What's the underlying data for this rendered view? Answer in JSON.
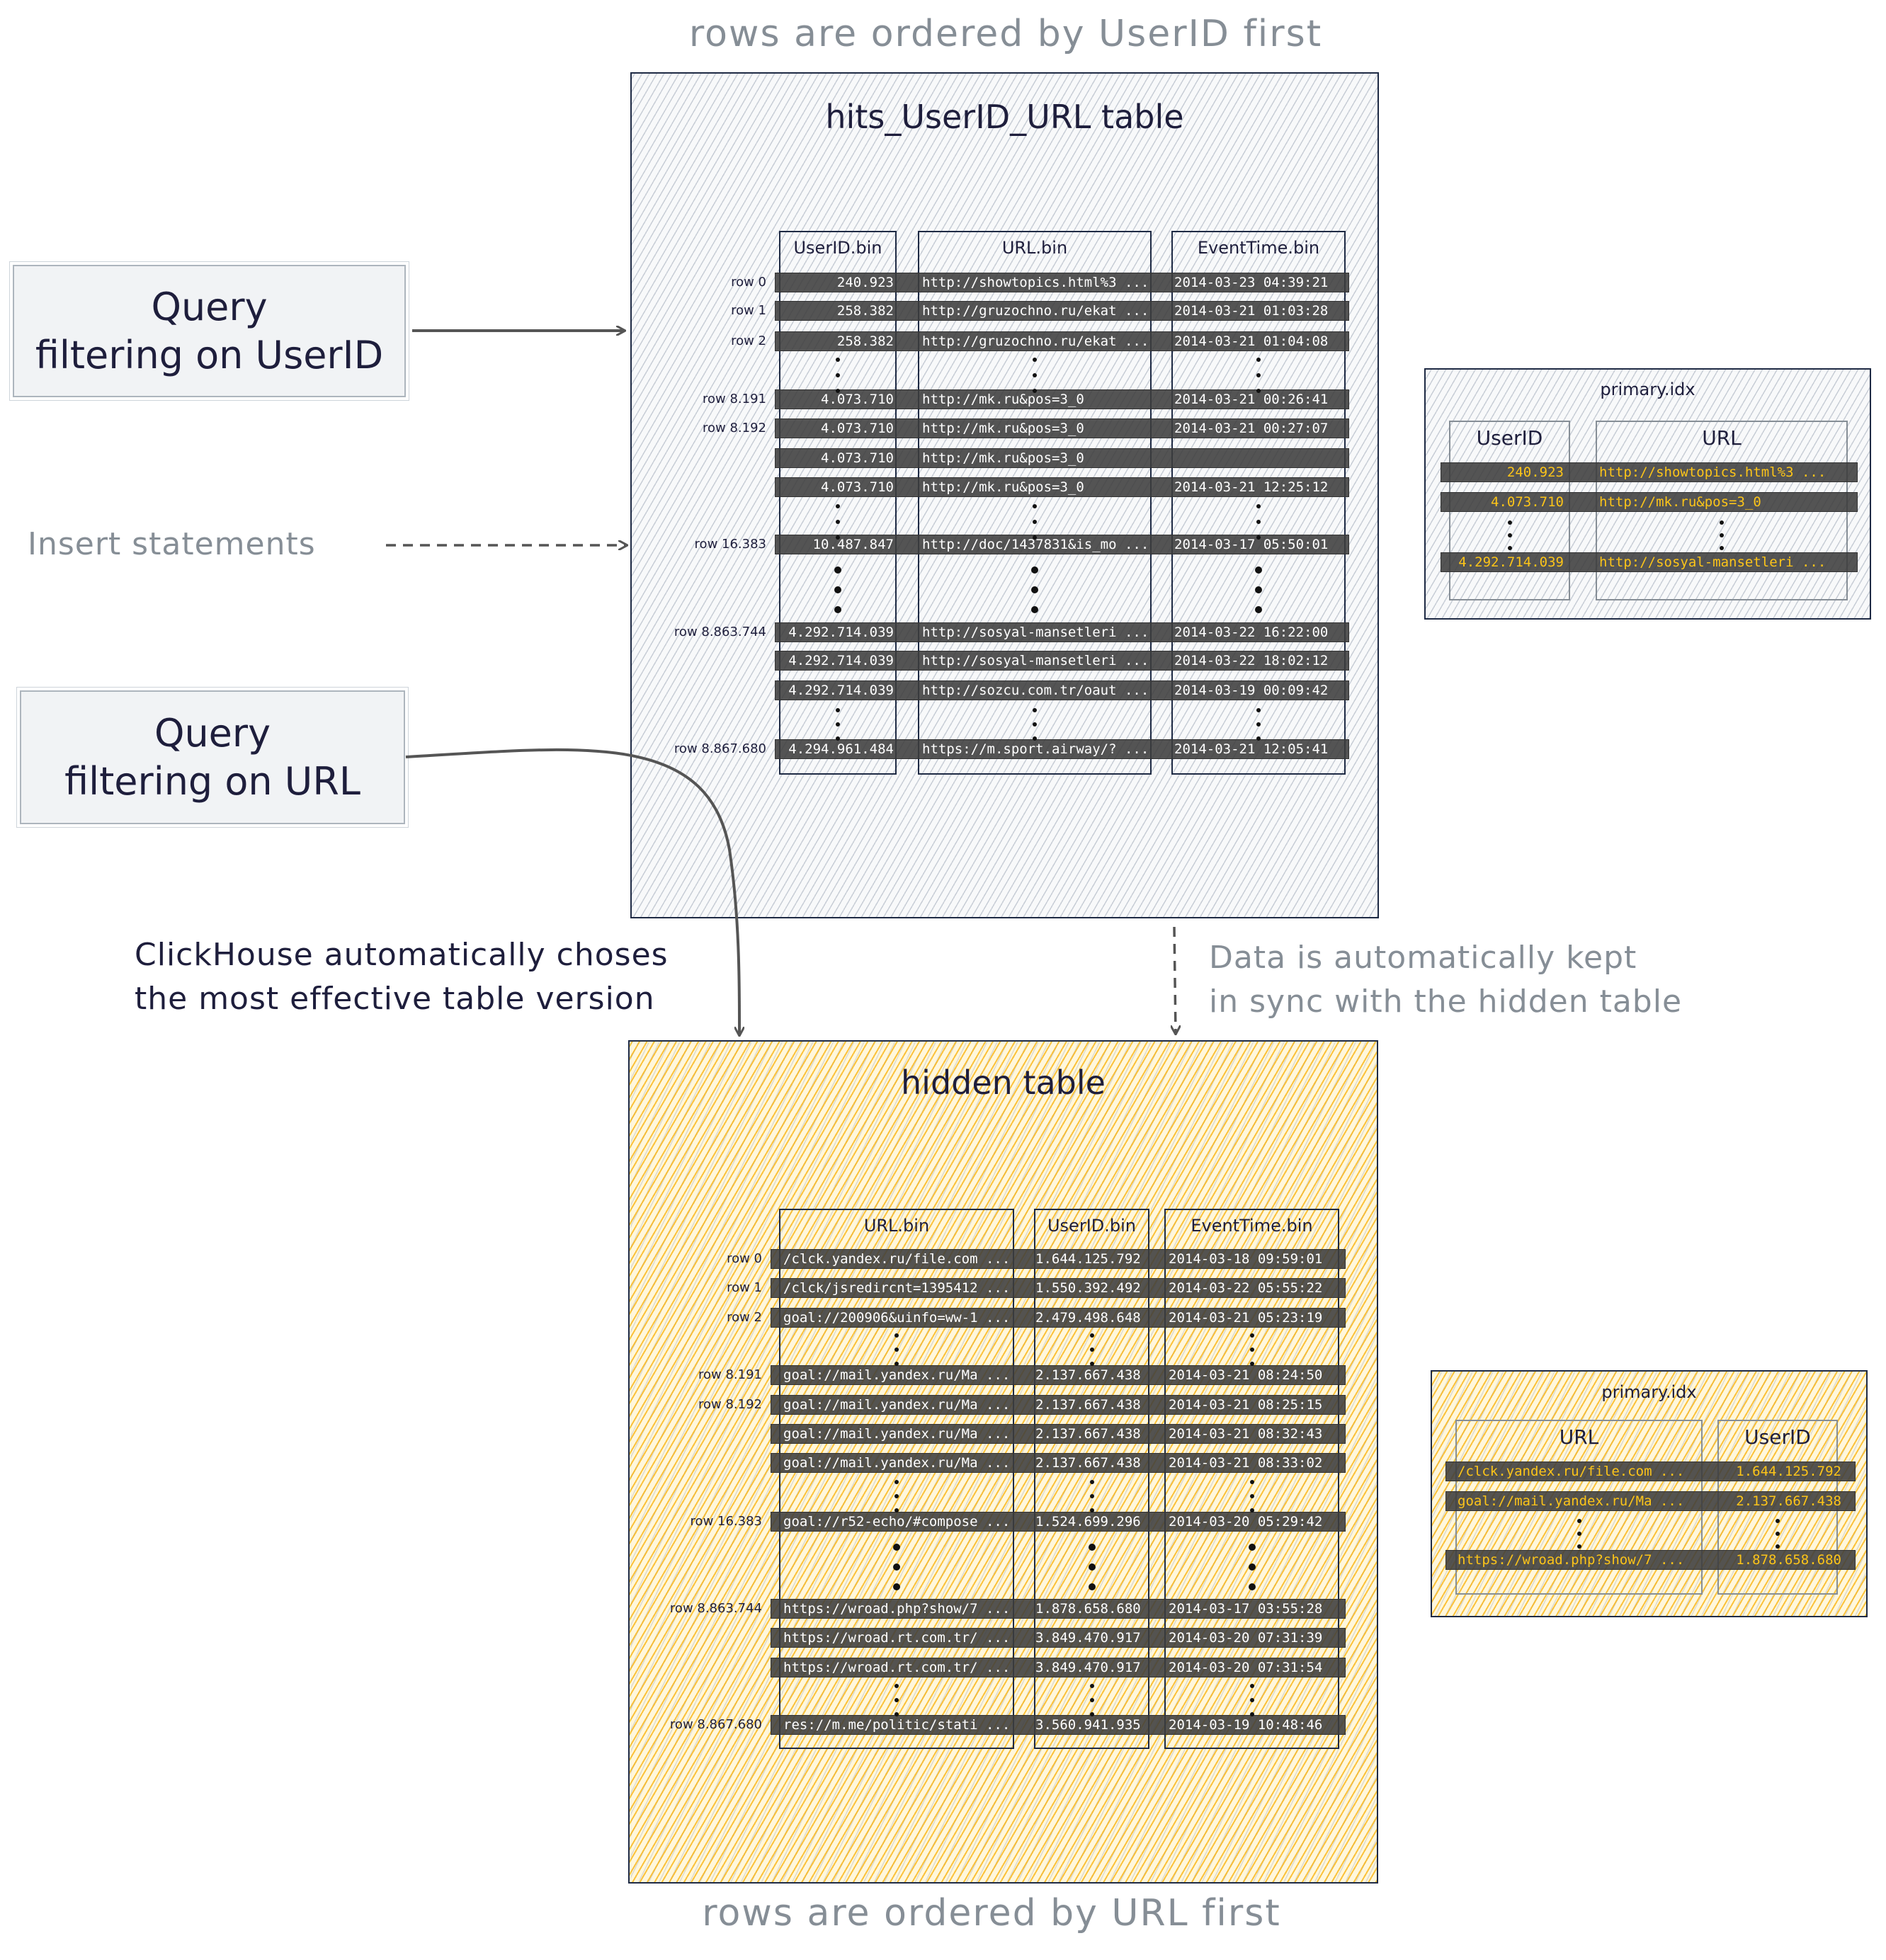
{
  "top_caption": "rows are ordered by UserID first",
  "bottom_caption": "rows are ordered by URL first",
  "main_table": {
    "title": "hits_UserID_URL table",
    "columns": [
      "UserID.bin",
      "URL.bin",
      "EventTime.bin"
    ],
    "rows": [
      {
        "label": "row 0",
        "values": [
          "240.923",
          "http://showtopics.html%3 ...",
          "2014-03-23 04:39:21"
        ]
      },
      {
        "label": "row 1",
        "values": [
          "258.382",
          "http://gruzochno.ru/ekat ...",
          "2014-03-21 01:03:28"
        ]
      },
      {
        "label": "row 2",
        "values": [
          "258.382",
          "http://gruzochno.ru/ekat ...",
          "2014-03-21 01:04:08"
        ]
      },
      {
        "label": "row 8.191",
        "values": [
          "4.073.710",
          "http://mk.ru&pos=3_0",
          "2014-03-21 00:26:41"
        ]
      },
      {
        "label": "row 8.192",
        "values": [
          "4.073.710",
          "http://mk.ru&pos=3_0",
          "2014-03-21 00:27:07"
        ]
      },
      {
        "label": "",
        "values": [
          "4.073.710",
          "http://mk.ru&pos=3_0",
          ""
        ]
      },
      {
        "label": "",
        "values": [
          "4.073.710",
          "http://mk.ru&pos=3_0",
          "2014-03-21 12:25:12"
        ]
      },
      {
        "label": "row 16.383",
        "values": [
          "10.487.847",
          "http://doc/1437831&is_mo ...",
          "2014-03-17 05:50:01"
        ]
      },
      {
        "label": "row 8.863.744",
        "values": [
          "4.292.714.039",
          "http://sosyal-mansetleri ...",
          "2014-03-22 16:22:00"
        ]
      },
      {
        "label": "",
        "values": [
          "4.292.714.039",
          "http://sosyal-mansetleri ...",
          "2014-03-22 18:02:12"
        ]
      },
      {
        "label": "",
        "values": [
          "4.292.714.039",
          "http://sozcu.com.tr/oaut ...",
          "2014-03-19 00:09:42"
        ]
      },
      {
        "label": "row 8.867.680",
        "values": [
          "4.294.961.484",
          "https://m.sport.airway/? ...",
          "2014-03-21 12:05:41"
        ]
      }
    ]
  },
  "hidden_table": {
    "title": "hidden table",
    "columns": [
      "URL.bin",
      "UserID.bin",
      "EventTime.bin"
    ],
    "rows": [
      {
        "label": "row 0",
        "values": [
          "/clck.yandex.ru/file.com ...",
          "1.644.125.792",
          "2014-03-18 09:59:01"
        ]
      },
      {
        "label": "row 1",
        "values": [
          "/clck/jsredircnt=1395412 ...",
          "1.550.392.492",
          "2014-03-22 05:55:22"
        ]
      },
      {
        "label": "row 2",
        "values": [
          "goal://200906&uinfo=ww-1 ...",
          "2.479.498.648",
          "2014-03-21 05:23:19"
        ]
      },
      {
        "label": "row 8.191",
        "values": [
          "goal://mail.yandex.ru/Ma ...",
          "2.137.667.438",
          "2014-03-21 08:24:50"
        ]
      },
      {
        "label": "row 8.192",
        "values": [
          "goal://mail.yandex.ru/Ma ...",
          "2.137.667.438",
          "2014-03-21 08:25:15"
        ]
      },
      {
        "label": "",
        "values": [
          "goal://mail.yandex.ru/Ma ...",
          "2.137.667.438",
          "2014-03-21 08:32:43"
        ]
      },
      {
        "label": "",
        "values": [
          "goal://mail.yandex.ru/Ma ...",
          "2.137.667.438",
          "2014-03-21 08:33:02"
        ]
      },
      {
        "label": "row 16.383",
        "values": [
          "goal://r52-echo/#compose ...",
          "1.524.699.296",
          "2014-03-20 05:29:42"
        ]
      },
      {
        "label": "row 8.863.744",
        "values": [
          "https://wroad.php?show/7 ...",
          "1.878.658.680",
          "2014-03-17 03:55:28"
        ]
      },
      {
        "label": "",
        "values": [
          "https://wroad.rt.com.tr/ ...",
          "3.849.470.917",
          "2014-03-20 07:31:39"
        ]
      },
      {
        "label": "",
        "values": [
          "https://wroad.rt.com.tr/ ...",
          "3.849.470.917",
          "2014-03-20 07:31:54"
        ]
      },
      {
        "label": "row 8.867.680",
        "values": [
          "res://m.me/politic/stati ...",
          "3.560.941.935",
          "2014-03-19 10:48:46"
        ]
      }
    ]
  },
  "primary_idx_top": {
    "title": "primary.idx",
    "columns": [
      "UserID",
      "URL"
    ],
    "rows": [
      [
        "240.923",
        "http://showtopics.html%3 ..."
      ],
      [
        "4.073.710",
        "http://mk.ru&pos=3_0"
      ],
      [
        "4.292.714.039",
        "http://sosyal-mansetleri ..."
      ]
    ]
  },
  "primary_idx_bottom": {
    "title": "primary.idx",
    "columns": [
      "URL",
      "UserID"
    ],
    "rows": [
      [
        "/clck.yandex.ru/file.com ...",
        "1.644.125.792"
      ],
      [
        "goal://mail.yandex.ru/Ma ...",
        "2.137.667.438"
      ],
      [
        "https://wroad.php?show/7 ...",
        "1.878.658.680"
      ]
    ]
  },
  "query_userid": {
    "line1": "Query",
    "line2": "filtering on UserID"
  },
  "query_url": {
    "line1": "Query",
    "line2": "filtering on URL"
  },
  "insert_label": "Insert statements",
  "clickhouse_note": {
    "line1": "ClickHouse automatically choses",
    "line2": "the most effective table version"
  },
  "sync_note": {
    "line1": "Data is automatically kept",
    "line2": "in sync with the hidden table"
  },
  "colors": {
    "ink": "#1e1e3c",
    "muted": "#868e96",
    "highlight": "#fcc419",
    "hidden_fill": "#fab005",
    "row_bar": "#3c3c3c"
  }
}
